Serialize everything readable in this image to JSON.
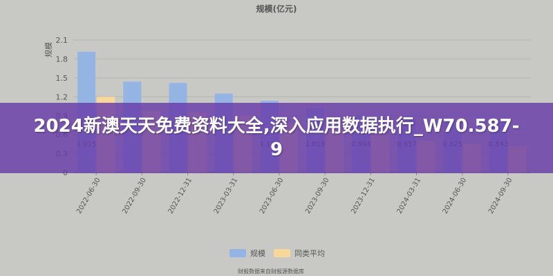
{
  "banner": {
    "title": "2024新澳天天免费资料大全,深入应用数据执行_W70.587-9"
  },
  "colors": {
    "background": "#c8c9c4",
    "scale_bar": "#94b5e4",
    "yoy_bar": "#f7d79a",
    "banner": "#683caa"
  },
  "footer": {
    "source_note": "财报数据来自财报源数据库"
  },
  "chart_data": {
    "type": "bar",
    "title": "规模(亿元)",
    "ylabel": "规模",
    "ylim": [
      0,
      2.1
    ],
    "yticks": [
      0,
      0.3,
      0.6,
      0.9,
      1.2,
      1.5,
      1.8,
      2.1
    ],
    "grid": true,
    "legend_position": "bottom",
    "categories": [
      "2022-06-30",
      "2022-09-30",
      "2022-12-31",
      "2023-03-31",
      "2023-06-30",
      "2023-09-30",
      "2023-12-31",
      "2024-03-31",
      "2024-06-30",
      "2024-09-30"
    ],
    "series": [
      {
        "name": "规模",
        "color": "#94b5e4",
        "values": [
          1.915,
          1.44,
          1.42,
          1.25,
          1.137,
          1.019,
          0.894,
          0.857,
          0.825,
          0.843
        ],
        "labels": [
          "1.915",
          "",
          "",
          "",
          "1.137",
          "1.019",
          "0.894",
          "0.857",
          "0.825",
          "0.843"
        ]
      },
      {
        "name": "同类平均",
        "color": "#f7d79a",
        "values": [
          1.2,
          0.98,
          0.95,
          0.9,
          0.78,
          0.68,
          0.6,
          0.5,
          0.45,
          0.42
        ]
      }
    ]
  }
}
